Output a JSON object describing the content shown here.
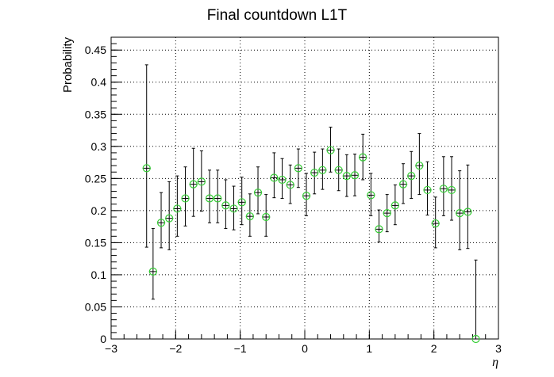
{
  "chart_data": {
    "type": "scatter",
    "title": "Final countdown L1T",
    "xlabel": "η",
    "ylabel": "Probability",
    "xlim": [
      -3,
      3
    ],
    "ylim": [
      0,
      0.47
    ],
    "grid": true,
    "legend": "none",
    "marker_color": "#33cc33",
    "error_color": "#000000",
    "x_ticks": [
      -3,
      -2,
      -1,
      0,
      1,
      2,
      3
    ],
    "x_tick_labels": [
      "−3",
      "−2",
      "−1",
      "0",
      "1",
      "2",
      "3"
    ],
    "y_ticks": [
      0,
      0.05,
      0.1,
      0.15,
      0.2,
      0.25,
      0.3,
      0.35,
      0.4,
      0.45
    ],
    "y_tick_labels": [
      "0",
      "0.05",
      "0.1",
      "0.15",
      "0.2",
      "0.25",
      "0.3",
      "0.35",
      "0.4",
      "0.45"
    ],
    "points": [
      {
        "x": -2.45,
        "y": 0.266,
        "lo": 0.143,
        "hi": 0.427
      },
      {
        "x": -2.35,
        "y": 0.105,
        "lo": 0.062,
        "hi": 0.172
      },
      {
        "x": -2.225,
        "y": 0.181,
        "lo": 0.142,
        "hi": 0.228
      },
      {
        "x": -2.1,
        "y": 0.188,
        "lo": 0.139,
        "hi": 0.245
      },
      {
        "x": -1.975,
        "y": 0.203,
        "lo": 0.16,
        "hi": 0.254
      },
      {
        "x": -1.85,
        "y": 0.219,
        "lo": 0.176,
        "hi": 0.268
      },
      {
        "x": -1.725,
        "y": 0.241,
        "lo": 0.191,
        "hi": 0.297
      },
      {
        "x": -1.6,
        "y": 0.245,
        "lo": 0.199,
        "hi": 0.293
      },
      {
        "x": -1.475,
        "y": 0.219,
        "lo": 0.181,
        "hi": 0.263
      },
      {
        "x": -1.35,
        "y": 0.219,
        "lo": 0.181,
        "hi": 0.263
      },
      {
        "x": -1.225,
        "y": 0.208,
        "lo": 0.172,
        "hi": 0.248
      },
      {
        "x": -1.1,
        "y": 0.203,
        "lo": 0.17,
        "hi": 0.238
      },
      {
        "x": -0.975,
        "y": 0.213,
        "lo": 0.178,
        "hi": 0.252
      },
      {
        "x": -0.85,
        "y": 0.191,
        "lo": 0.16,
        "hi": 0.226
      },
      {
        "x": -0.725,
        "y": 0.228,
        "lo": 0.195,
        "hi": 0.268
      },
      {
        "x": -0.6,
        "y": 0.19,
        "lo": 0.16,
        "hi": 0.225
      },
      {
        "x": -0.475,
        "y": 0.251,
        "lo": 0.22,
        "hi": 0.29
      },
      {
        "x": -0.35,
        "y": 0.248,
        "lo": 0.219,
        "hi": 0.281
      },
      {
        "x": -0.225,
        "y": 0.24,
        "lo": 0.211,
        "hi": 0.271
      },
      {
        "x": -0.1,
        "y": 0.266,
        "lo": 0.236,
        "hi": 0.296
      },
      {
        "x": 0.025,
        "y": 0.223,
        "lo": 0.192,
        "hi": 0.258
      },
      {
        "x": 0.15,
        "y": 0.259,
        "lo": 0.226,
        "hi": 0.291
      },
      {
        "x": 0.275,
        "y": 0.263,
        "lo": 0.233,
        "hi": 0.296
      },
      {
        "x": 0.4,
        "y": 0.294,
        "lo": 0.26,
        "hi": 0.33
      },
      {
        "x": 0.525,
        "y": 0.263,
        "lo": 0.231,
        "hi": 0.296
      },
      {
        "x": 0.65,
        "y": 0.254,
        "lo": 0.222,
        "hi": 0.287
      },
      {
        "x": 0.775,
        "y": 0.255,
        "lo": 0.223,
        "hi": 0.288
      },
      {
        "x": 0.9,
        "y": 0.283,
        "lo": 0.248,
        "hi": 0.319
      },
      {
        "x": 1.025,
        "y": 0.224,
        "lo": 0.192,
        "hi": 0.258
      },
      {
        "x": 1.15,
        "y": 0.171,
        "lo": 0.151,
        "hi": 0.201
      },
      {
        "x": 1.275,
        "y": 0.196,
        "lo": 0.167,
        "hi": 0.225
      },
      {
        "x": 1.4,
        "y": 0.208,
        "lo": 0.178,
        "hi": 0.24
      },
      {
        "x": 1.525,
        "y": 0.241,
        "lo": 0.211,
        "hi": 0.273
      },
      {
        "x": 1.65,
        "y": 0.254,
        "lo": 0.219,
        "hi": 0.292
      },
      {
        "x": 1.775,
        "y": 0.27,
        "lo": 0.225,
        "hi": 0.32
      },
      {
        "x": 1.9,
        "y": 0.232,
        "lo": 0.193,
        "hi": 0.276
      },
      {
        "x": 2.025,
        "y": 0.18,
        "lo": 0.142,
        "hi": 0.221
      },
      {
        "x": 2.15,
        "y": 0.234,
        "lo": 0.192,
        "hi": 0.284
      },
      {
        "x": 2.275,
        "y": 0.232,
        "lo": 0.185,
        "hi": 0.284
      },
      {
        "x": 2.4,
        "y": 0.196,
        "lo": 0.139,
        "hi": 0.262
      },
      {
        "x": 2.525,
        "y": 0.198,
        "lo": 0.141,
        "hi": 0.271
      },
      {
        "x": 2.65,
        "y": 0.0,
        "lo": 0.0,
        "hi": 0.123
      }
    ]
  }
}
